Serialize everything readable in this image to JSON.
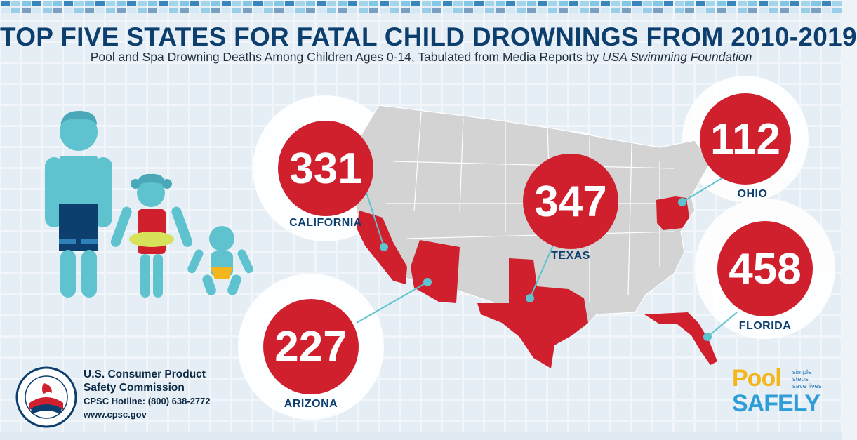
{
  "header": {
    "title": "TOP FIVE STATES FOR FATAL CHILD DROWNINGS FROM 2010-2019",
    "subtitle_main": "Pool and Spa Drowning Deaths Among Children Ages 0-14, Tabulated from Media Reports by ",
    "subtitle_source": "USA Swimming Foundation"
  },
  "states": [
    {
      "name": "CALIFORNIA",
      "deaths": "331"
    },
    {
      "name": "TEXAS",
      "deaths": "347"
    },
    {
      "name": "OHIO",
      "deaths": "112"
    },
    {
      "name": "FLORIDA",
      "deaths": "458"
    },
    {
      "name": "ARIZONA",
      "deaths": "227"
    }
  ],
  "cpsc": {
    "name_line1": "U.S. Consumer Product",
    "name_line2": "Safety Commission",
    "hotline": "CPSC  Hotline: (800) 638-2772",
    "website": "www.cpsc.gov"
  },
  "pool_safely": {
    "word1": "Pool",
    "tag_line1": "simple steps",
    "tag_line2": "save lives",
    "word2": "SAFELY"
  },
  "colors": {
    "title": "#0d3f6e",
    "circle_red": "#d0202e",
    "map_gray": "#d3d3d3",
    "highlight_red": "#d0202e",
    "figure_teal": "#5ec3ce"
  }
}
